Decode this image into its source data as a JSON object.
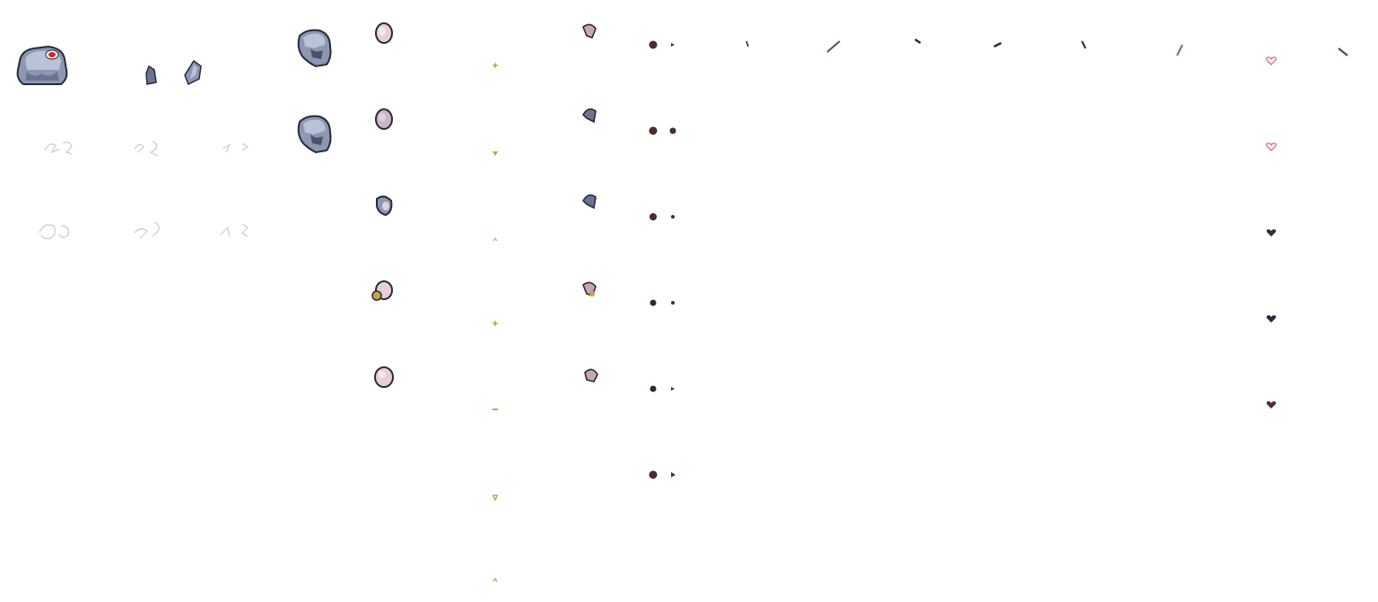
{
  "sheet": {
    "background": "#ffffff",
    "palette": {
      "body_light": "#b9c2d6",
      "body_mid": "#8c97b2",
      "body_dark": "#4a5168",
      "outline": "#262a3a",
      "eye_red": "#e0202a",
      "shell_pink": "#e7cfd8",
      "shell_edge": "#6a6178",
      "gold": "#c9a24a",
      "heart_pink": "#d9889a",
      "heart_dark": "#3a2e36",
      "dot_brown": "#5a2a22",
      "scribble": "#c7cbd4"
    },
    "sprites": [
      "chest-sprite",
      "fragment-small",
      "fragment-large",
      "head-sprite-a",
      "head-sprite-b",
      "outline-scribbles",
      "shell-frames",
      "spark-frames",
      "shard-frames",
      "dot-pair-frames",
      "stroke-frames",
      "heart-frames"
    ]
  }
}
